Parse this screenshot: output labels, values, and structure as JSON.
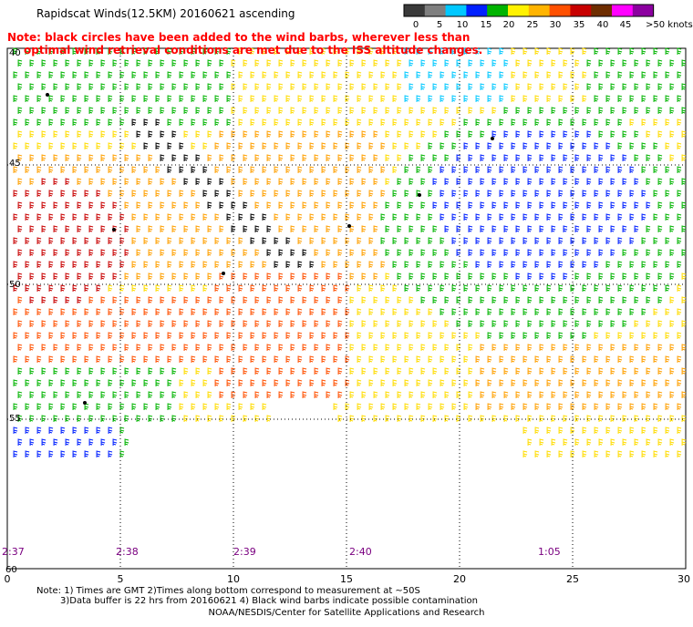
{
  "title": "Rapidscat Winds(12.5KM) 20160621 ascending",
  "note_line1": "Note: black circles have been added to the wind barbs, wherever less than",
  "note_line2": "optimal wind retrieval conditions are met due to the ISS altitude changes.",
  "legend": {
    "labels": [
      "0",
      "5",
      "10",
      "15",
      "20",
      "25",
      "30",
      "35",
      "40",
      "45",
      ">50 knots"
    ],
    "colors": [
      "#3a3a3a",
      "#7f7f7f",
      "#00c8ff",
      "#0020ff",
      "#00b400",
      "#fff200",
      "#ffb400",
      "#ff5000",
      "#c80000",
      "#6e2d00",
      "#ff00ff",
      "#8c00a0"
    ]
  },
  "axes": {
    "x_ticks": [
      "0",
      "5",
      "10",
      "15",
      "20",
      "25",
      "30"
    ],
    "y_ticks": [
      "40",
      "45",
      "50",
      "55",
      "60"
    ]
  },
  "times": [
    "2:37",
    "2:38",
    "2:39",
    "2:40",
    "1:05"
  ],
  "footer": {
    "line1": "Note: 1) Times are GMT 2)Times along bottom correspond to measurement at ~50S",
    "line2": "3)Data buffer is 22 hrs from 20160621 4) Black wind barbs indicate possible contamination",
    "credit": "NOAA/NESDIS/Center for Satellite Applications and Research"
  },
  "colors": {
    "note": "#ff0000",
    "time_labels": "#7a0080"
  }
}
